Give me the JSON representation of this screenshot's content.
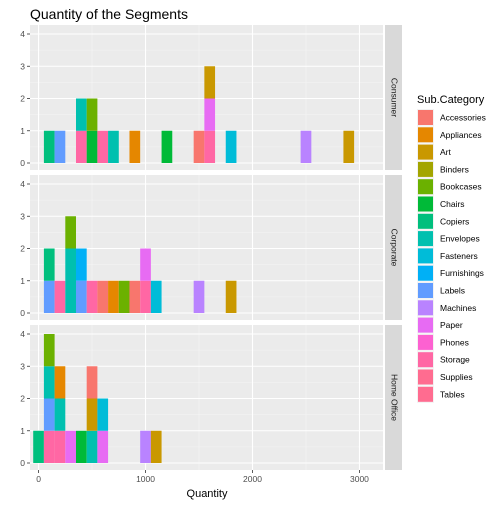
{
  "chart_data": {
    "type": "bar",
    "title": "Quantity of the Segments",
    "xlabel": "Quantity",
    "ylabel": "",
    "stacked": true,
    "x_ticks": [
      0,
      1000,
      2000,
      3000
    ],
    "x_range": [
      -80,
      3220
    ],
    "bin_width": 100,
    "y_ticks": [
      0,
      1,
      2,
      3,
      4
    ],
    "y_range": [
      0,
      4
    ],
    "grid": true,
    "legend_title": "Sub.Category",
    "legend_position": "right",
    "colors": {
      "Accessories": "#F8766D",
      "Appliances": "#E58700",
      "Art": "#C99800",
      "Binders": "#A3A500",
      "Bookcases": "#6BB100",
      "Chairs": "#00BA38",
      "Copiers": "#00BF7D",
      "Envelopes": "#00C0AF",
      "Fasteners": "#00BCD8",
      "Furnishings": "#00B0F6",
      "Labels": "#619CFF",
      "Machines": "#B983FF",
      "Paper": "#E76BF3",
      "Phones": "#FD61D1",
      "Storage": "#FF67A4",
      "Supplies": "#FF6C90",
      "Tables": "#FF6C90"
    },
    "legend": [
      "Accessories",
      "Appliances",
      "Art",
      "Binders",
      "Bookcases",
      "Chairs",
      "Copiers",
      "Envelopes",
      "Fasteners",
      "Furnishings",
      "Labels",
      "Machines",
      "Paper",
      "Phones",
      "Storage",
      "Supplies",
      "Tables"
    ],
    "facets": [
      {
        "label": "Consumer",
        "bars": [
          {
            "x": 100,
            "segments": [
              {
                "cat": "Copiers",
                "n": 1
              }
            ]
          },
          {
            "x": 200,
            "segments": [
              {
                "cat": "Labels",
                "n": 1
              }
            ]
          },
          {
            "x": 400,
            "segments": [
              {
                "cat": "Storage",
                "n": 1
              },
              {
                "cat": "Envelopes",
                "n": 1
              }
            ]
          },
          {
            "x": 500,
            "segments": [
              {
                "cat": "Chairs",
                "n": 1
              },
              {
                "cat": "Bookcases",
                "n": 1
              }
            ]
          },
          {
            "x": 600,
            "segments": [
              {
                "cat": "Storage",
                "n": 1
              }
            ]
          },
          {
            "x": 700,
            "segments": [
              {
                "cat": "Envelopes",
                "n": 1
              }
            ]
          },
          {
            "x": 900,
            "segments": [
              {
                "cat": "Appliances",
                "n": 1
              }
            ]
          },
          {
            "x": 1200,
            "segments": [
              {
                "cat": "Chairs",
                "n": 1
              }
            ]
          },
          {
            "x": 1500,
            "segments": [
              {
                "cat": "Accessories",
                "n": 1
              }
            ]
          },
          {
            "x": 1600,
            "segments": [
              {
                "cat": "Storage",
                "n": 1
              },
              {
                "cat": "Paper",
                "n": 1
              },
              {
                "cat": "Art",
                "n": 1
              }
            ]
          },
          {
            "x": 1800,
            "segments": [
              {
                "cat": "Fasteners",
                "n": 1
              }
            ]
          },
          {
            "x": 2500,
            "segments": [
              {
                "cat": "Machines",
                "n": 1
              }
            ]
          },
          {
            "x": 2900,
            "segments": [
              {
                "cat": "Art",
                "n": 1
              }
            ]
          }
        ]
      },
      {
        "label": "Corporate",
        "bars": [
          {
            "x": 100,
            "segments": [
              {
                "cat": "Labels",
                "n": 1
              },
              {
                "cat": "Copiers",
                "n": 1
              }
            ]
          },
          {
            "x": 200,
            "segments": [
              {
                "cat": "Storage",
                "n": 1
              }
            ]
          },
          {
            "x": 300,
            "segments": [
              {
                "cat": "Envelopes",
                "n": 2
              },
              {
                "cat": "Bookcases",
                "n": 1
              }
            ]
          },
          {
            "x": 400,
            "segments": [
              {
                "cat": "Labels",
                "n": 1
              },
              {
                "cat": "Furnishings",
                "n": 1
              }
            ]
          },
          {
            "x": 500,
            "segments": [
              {
                "cat": "Storage",
                "n": 1
              }
            ]
          },
          {
            "x": 600,
            "segments": [
              {
                "cat": "Accessories",
                "n": 1
              }
            ]
          },
          {
            "x": 700,
            "segments": [
              {
                "cat": "Appliances",
                "n": 1
              }
            ]
          },
          {
            "x": 800,
            "segments": [
              {
                "cat": "Bookcases",
                "n": 1
              }
            ]
          },
          {
            "x": 900,
            "segments": [
              {
                "cat": "Accessories",
                "n": 1
              }
            ]
          },
          {
            "x": 1000,
            "segments": [
              {
                "cat": "Storage",
                "n": 1
              },
              {
                "cat": "Paper",
                "n": 1
              }
            ]
          },
          {
            "x": 1100,
            "segments": [
              {
                "cat": "Fasteners",
                "n": 1
              }
            ]
          },
          {
            "x": 1500,
            "segments": [
              {
                "cat": "Machines",
                "n": 1
              }
            ]
          },
          {
            "x": 1800,
            "segments": [
              {
                "cat": "Art",
                "n": 1
              }
            ]
          }
        ]
      },
      {
        "label": "Home Office",
        "bars": [
          {
            "x": 0,
            "segments": [
              {
                "cat": "Copiers",
                "n": 1
              }
            ]
          },
          {
            "x": 100,
            "segments": [
              {
                "cat": "Storage",
                "n": 1
              },
              {
                "cat": "Labels",
                "n": 1
              },
              {
                "cat": "Envelopes",
                "n": 1
              },
              {
                "cat": "Bookcases",
                "n": 1
              }
            ]
          },
          {
            "x": 200,
            "segments": [
              {
                "cat": "Storage",
                "n": 1
              },
              {
                "cat": "Envelopes",
                "n": 1
              },
              {
                "cat": "Appliances",
                "n": 1
              }
            ]
          },
          {
            "x": 300,
            "segments": [
              {
                "cat": "Paper",
                "n": 1
              }
            ]
          },
          {
            "x": 400,
            "segments": [
              {
                "cat": "Chairs",
                "n": 1
              }
            ]
          },
          {
            "x": 500,
            "segments": [
              {
                "cat": "Envelopes",
                "n": 1
              },
              {
                "cat": "Art",
                "n": 1
              },
              {
                "cat": "Accessories",
                "n": 1
              }
            ]
          },
          {
            "x": 600,
            "segments": [
              {
                "cat": "Paper",
                "n": 1
              },
              {
                "cat": "Fasteners",
                "n": 1
              }
            ]
          },
          {
            "x": 1000,
            "segments": [
              {
                "cat": "Machines",
                "n": 1
              }
            ]
          },
          {
            "x": 1100,
            "segments": [
              {
                "cat": "Art",
                "n": 1
              }
            ]
          }
        ]
      }
    ]
  }
}
